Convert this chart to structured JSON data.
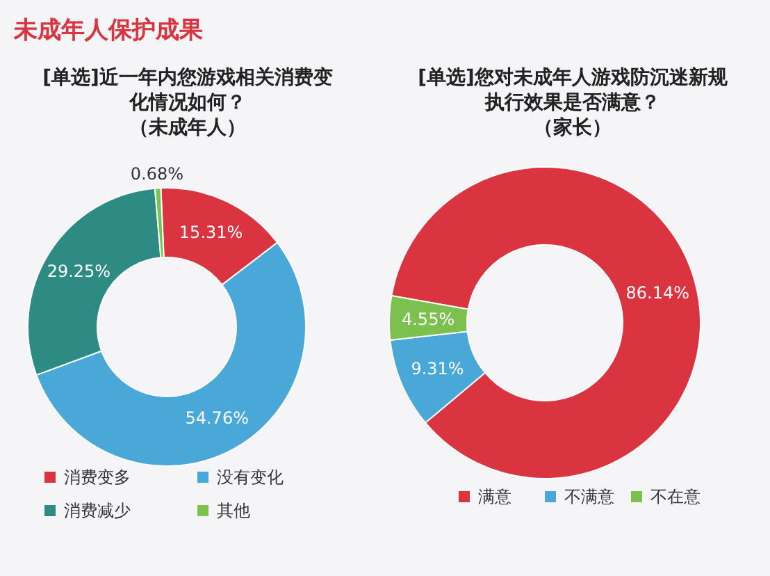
{
  "chart_data": [
    {
      "type": "donut",
      "title": "[单选]近一年内您游戏相关消费变化情况如何？（未成年人）",
      "annotations": [
        "未成年人保护成果"
      ],
      "categories": [
        "消费变多",
        "没有变化",
        "消费减少",
        "其他"
      ],
      "values": [
        15.31,
        54.76,
        29.25,
        0.68
      ],
      "colors": [
        "#d9343f",
        "#4aa8d8",
        "#2e8b84",
        "#7cc04f"
      ],
      "value_labels": [
        "15.31%",
        "54.76%",
        "29.25%",
        "0.68%"
      ],
      "legend": "bottom"
    },
    {
      "type": "donut",
      "title": "[单选]您对未成年人游戏防沉迷新规执行效果是否满意？（家长）",
      "categories": [
        "满意",
        "不满意",
        "不在意"
      ],
      "values": [
        86.14,
        9.31,
        4.55
      ],
      "colors": [
        "#d9343f",
        "#4aa8d8",
        "#7cc04f"
      ],
      "value_labels": [
        "86.14%",
        "9.31%",
        "4.55%"
      ],
      "legend": "bottom"
    }
  ]
}
